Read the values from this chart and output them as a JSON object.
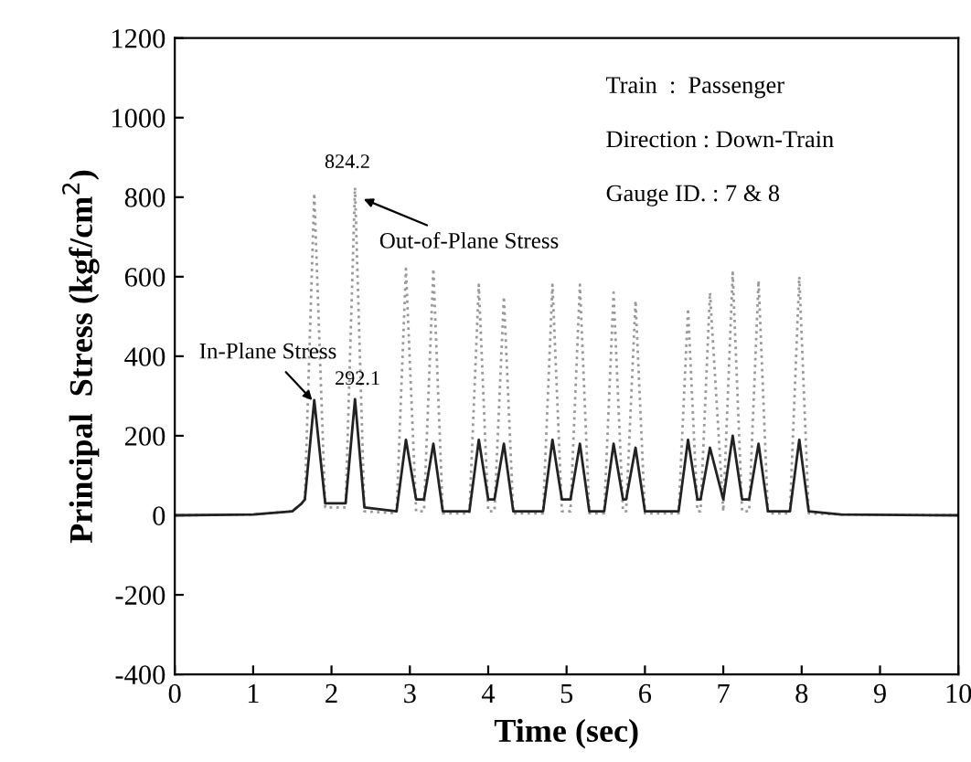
{
  "chart_data": {
    "type": "line",
    "xlabel": "Time (sec)",
    "ylabel": "Principal  Stress (kgf/cm$^{2}$)",
    "xlim": [
      0,
      10
    ],
    "xticks": [
      0,
      1,
      2,
      3,
      4,
      5,
      6,
      7,
      8,
      9,
      10
    ],
    "ylim": [
      -400,
      1200
    ],
    "yticks": [
      -400,
      -200,
      0,
      200,
      400,
      600,
      800,
      1000,
      1200
    ],
    "grid": false,
    "legend": false,
    "marker": "none",
    "x": [
      0,
      1,
      1.5,
      1.62,
      1.66,
      1.78,
      1.92,
      2.18,
      2.3,
      2.42,
      2.83,
      2.95,
      3.08,
      3.18,
      3.3,
      3.42,
      3.76,
      3.88,
      4.0,
      4.08,
      4.2,
      4.32,
      4.7,
      4.82,
      4.94,
      5.05,
      5.17,
      5.29,
      5.48,
      5.6,
      5.72,
      5.76,
      5.88,
      6.0,
      6.43,
      6.55,
      6.67,
      6.71,
      6.83,
      7.0,
      7.12,
      7.24,
      7.33,
      7.45,
      7.57,
      7.85,
      7.97,
      8.09,
      8.5,
      10
    ],
    "series": [
      {
        "color": "#999999",
        "line_style": "dotted",
        "values": [
          0,
          2,
          10,
          30,
          40,
          810,
          20,
          20,
          824.2,
          10,
          5,
          620,
          10,
          10,
          620,
          5,
          5,
          580,
          10,
          10,
          550,
          5,
          5,
          580,
          10,
          10,
          580,
          5,
          5,
          560,
          10,
          10,
          540,
          5,
          5,
          520,
          10,
          10,
          560,
          10,
          610,
          10,
          10,
          590,
          5,
          5,
          600,
          5,
          2,
          0
        ]
      },
      {
        "color": "#222222",
        "line_style": "solid",
        "values": [
          0,
          2,
          10,
          30,
          40,
          290,
          30,
          30,
          292.1,
          20,
          10,
          190,
          40,
          40,
          180,
          10,
          10,
          190,
          40,
          40,
          180,
          10,
          10,
          190,
          40,
          40,
          180,
          10,
          10,
          180,
          40,
          40,
          170,
          10,
          10,
          190,
          40,
          40,
          170,
          40,
          200,
          40,
          40,
          180,
          10,
          10,
          190,
          10,
          2,
          0
        ]
      }
    ],
    "annotations": [
      {
        "text": "824.2",
        "x": 2.3,
        "y": 824.2
      },
      {
        "text": "Out-of-Plane Stress",
        "x": 2.35,
        "y": 800
      },
      {
        "text": "292.1",
        "x": 2.3,
        "y": 292.1
      },
      {
        "text": "In-Plane Stress",
        "x": 1.8,
        "y": 280
      },
      "Train  :  Passenger",
      "Direction : Down-Train",
      "Gauge ID. : 7 & 8"
    ]
  }
}
